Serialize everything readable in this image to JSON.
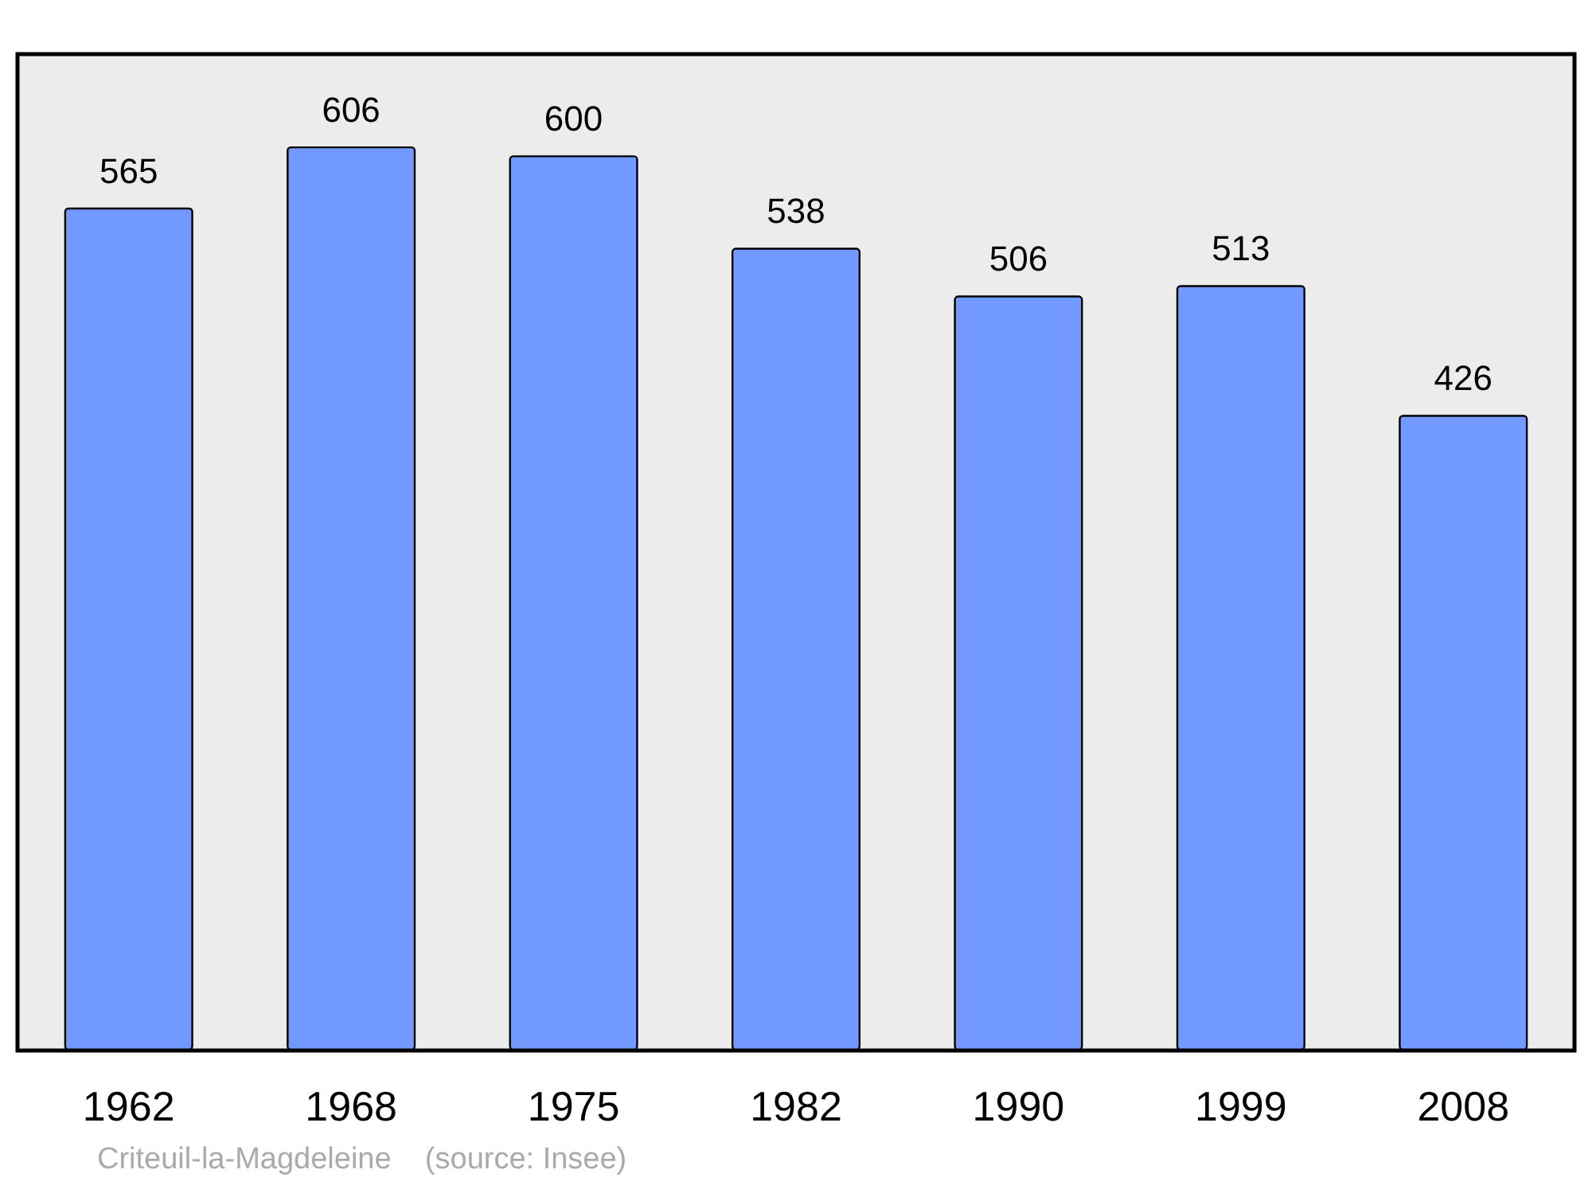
{
  "chart_data": {
    "type": "bar",
    "categories": [
      "1962",
      "1968",
      "1975",
      "1982",
      "1990",
      "1999",
      "2008"
    ],
    "values": [
      565,
      606,
      600,
      538,
      506,
      513,
      426
    ],
    "color": "#7299ff",
    "data_labels": true,
    "annotations": [
      "Criteuil-la-Magdeleine    (source: Insee)"
    ]
  }
}
